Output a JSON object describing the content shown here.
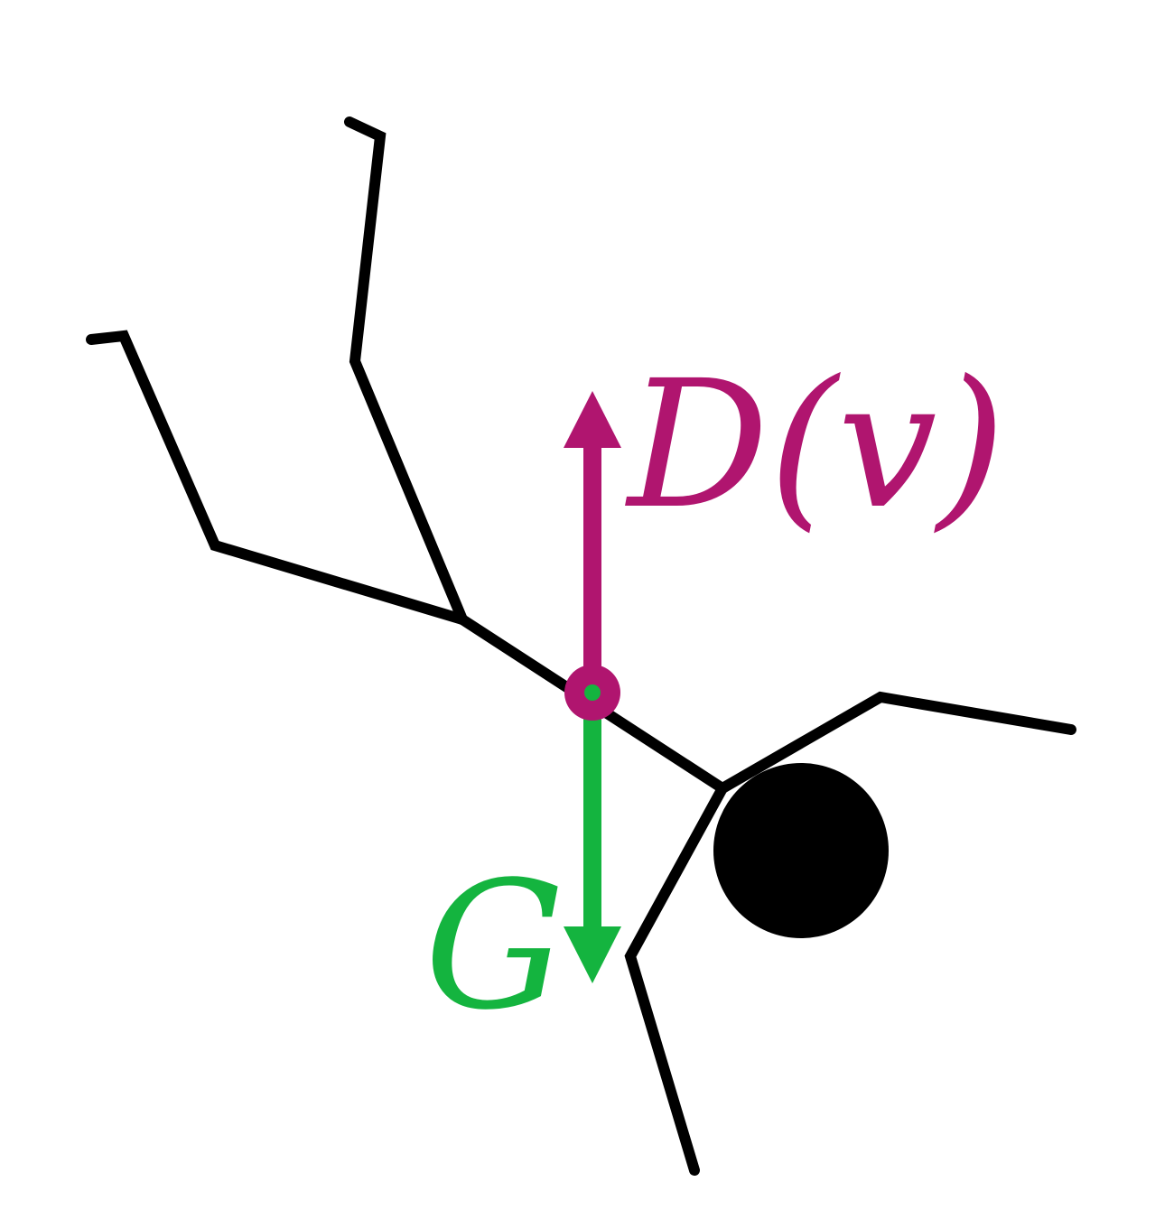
{
  "diagram": {
    "drag_label": "D(v)",
    "gravity_label": "G",
    "colors": {
      "figure": "#000000",
      "drag": "#b0156f",
      "gravity": "#14b43f",
      "background": "#ffffff"
    },
    "icons": {
      "figure": "stick-figure-falling-icon",
      "head": "head-circle-icon",
      "center_of_mass": "center-of-mass-marker-icon",
      "drag_arrow": "arrow-up-icon",
      "gravity_arrow": "arrow-down-icon"
    }
  }
}
